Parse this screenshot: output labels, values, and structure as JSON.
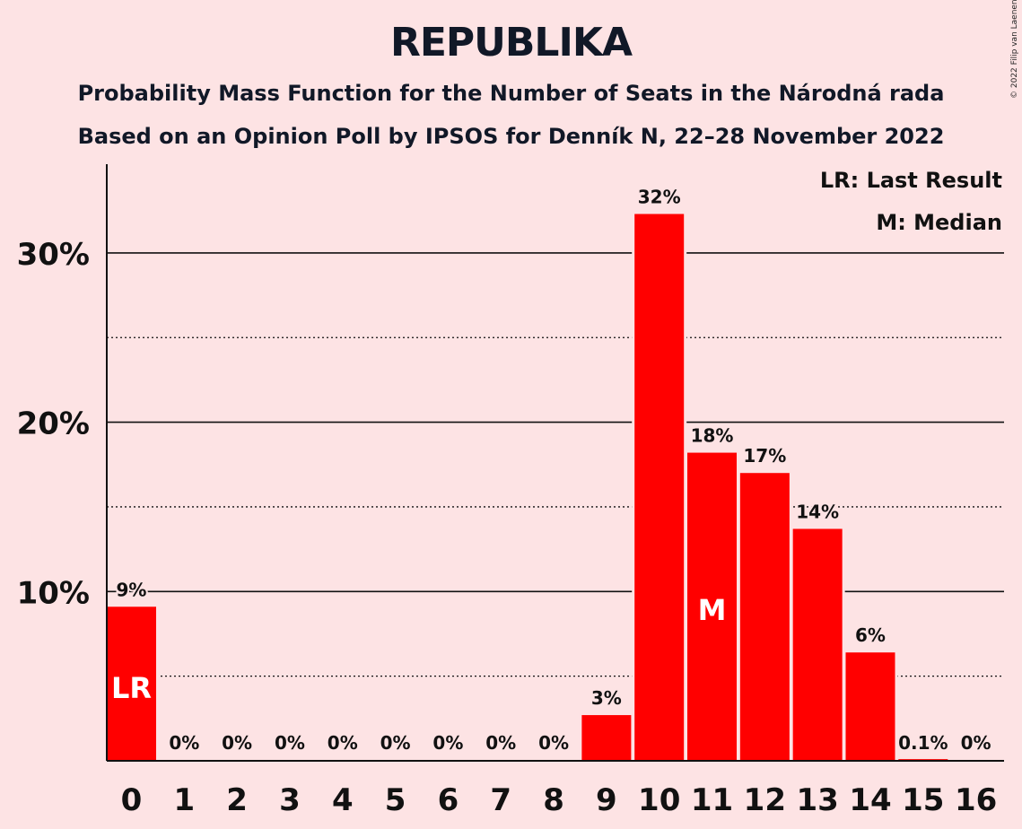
{
  "credit": "© 2022 Filip van Laenen",
  "chart_data": {
    "type": "bar",
    "title": "REPUBLIKA",
    "subtitle": "Probability Mass Function for the Number of Seats in the Národná rada",
    "subtitle2": "Based on an Opinion Poll by IPSOS for Denník N, 22–28 November 2022",
    "categories": [
      "0",
      "1",
      "2",
      "3",
      "4",
      "5",
      "6",
      "7",
      "8",
      "9",
      "10",
      "11",
      "12",
      "13",
      "14",
      "15",
      "16"
    ],
    "values": [
      9.1,
      0,
      0,
      0,
      0,
      0,
      0,
      0,
      0,
      2.7,
      32.3,
      18.2,
      17.0,
      13.7,
      6.4,
      0.1,
      0
    ],
    "data_labels": [
      "9%",
      "0%",
      "0%",
      "0%",
      "0%",
      "0%",
      "0%",
      "0%",
      "0%",
      "3%",
      "32%",
      "18%",
      "17%",
      "14%",
      "6%",
      "0.1%",
      "0%"
    ],
    "ylim": [
      0,
      35
    ],
    "yticks": [
      10,
      20,
      30
    ],
    "ytick_labels": [
      "10%",
      "20%",
      "30%"
    ],
    "minor_gridlines": [
      5,
      15,
      25
    ],
    "bar_color": "#ff0000",
    "background": "#fde3e4",
    "last_result_index": 0,
    "last_result_marker": "LR",
    "median_index": 11,
    "median_marker": "M",
    "legend": [
      "LR: Last Result",
      "M: Median"
    ],
    "legend_position": "top-right"
  }
}
